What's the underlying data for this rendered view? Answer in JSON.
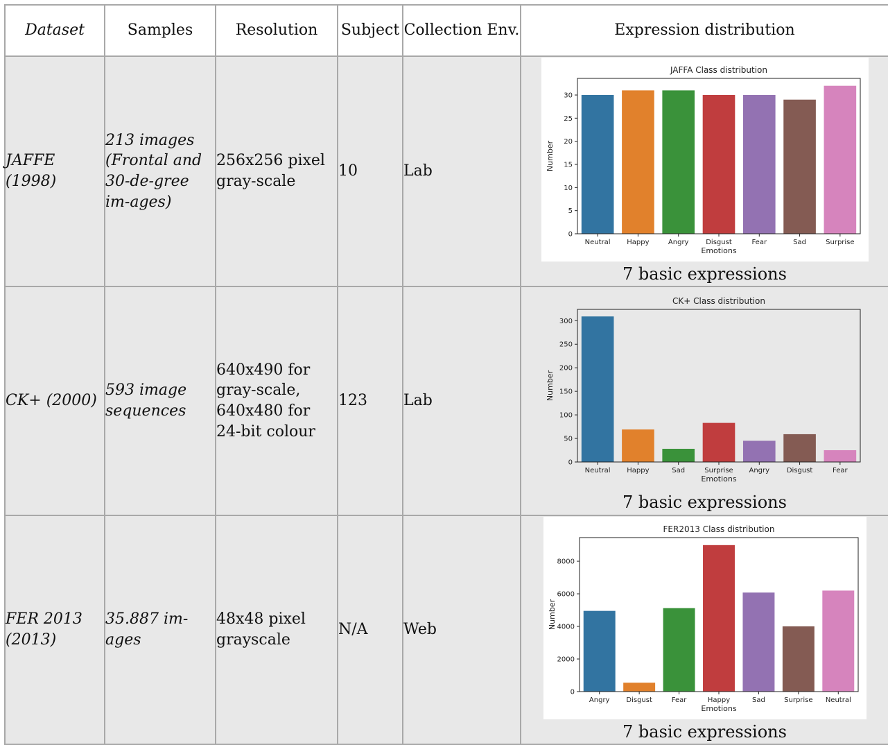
{
  "table": {
    "headers": [
      "Dataset",
      "Samples",
      "Resolution",
      "Subject",
      "Collection Env.",
      "Expression distribution"
    ],
    "rows": [
      {
        "dataset": "JAFFE (1998)",
        "samples": "213 images (Frontal and 30-de-gree im-ages)",
        "resolution": "256x256 pixel gray-scale",
        "subject": "10",
        "env": "Lab",
        "caption": "7 basic expressions"
      },
      {
        "dataset": "CK+ (2000)",
        "samples": "593 image sequences",
        "resolution": "640x490 for gray-scale, 640x480 for 24-bit colour",
        "subject": "123",
        "env": "Lab",
        "caption": "7 basic expressions"
      },
      {
        "dataset": "FER 2013 (2013)",
        "samples": "35.887 im-ages",
        "resolution": "48x48 pixel grayscale",
        "subject": "N/A",
        "env": "Web",
        "caption": "7 basic expressions"
      }
    ]
  },
  "chart_data": [
    {
      "type": "bar",
      "title": "JAFFA Class distribution",
      "xlabel": "Emotions",
      "ylabel": "Number",
      "categories": [
        "Neutral",
        "Happy",
        "Angry",
        "Disgust",
        "Fear",
        "Sad",
        "Surprise"
      ],
      "values": [
        30,
        31,
        31,
        30,
        30,
        29,
        32
      ],
      "ylim": [
        0,
        33.6
      ],
      "yticks": [
        0,
        5,
        10,
        15,
        20,
        25,
        30
      ],
      "colors": [
        "#3274a1",
        "#e1812c",
        "#3a923a",
        "#c03d3e",
        "#9372b2",
        "#845b53",
        "#d684bd"
      ]
    },
    {
      "type": "bar",
      "title": "CK+ Class distribution",
      "xlabel": "Emotions",
      "ylabel": "Number",
      "categories": [
        "Neutral",
        "Happy",
        "Sad",
        "Surprise",
        "Angry",
        "Disgust",
        "Fear"
      ],
      "values": [
        309,
        69,
        28,
        83,
        45,
        59,
        25
      ],
      "ylim": [
        0,
        324
      ],
      "yticks": [
        0,
        50,
        100,
        150,
        200,
        250,
        300
      ],
      "colors": [
        "#3274a1",
        "#e1812c",
        "#3a923a",
        "#c03d3e",
        "#9372b2",
        "#845b53",
        "#d684bd"
      ]
    },
    {
      "type": "bar",
      "title": "FER2013 Class distribution",
      "xlabel": "Emotions",
      "ylabel": "Number",
      "categories": [
        "Angry",
        "Disgust",
        "Fear",
        "Happy",
        "Sad",
        "Surprise",
        "Neutral"
      ],
      "values": [
        4953,
        547,
        5121,
        8989,
        6077,
        4002,
        6198
      ],
      "ylim": [
        0,
        9450
      ],
      "yticks": [
        0,
        2000,
        4000,
        6000,
        8000
      ],
      "colors": [
        "#3274a1",
        "#e1812c",
        "#3a923a",
        "#c03d3e",
        "#9372b2",
        "#845b53",
        "#d684bd"
      ]
    }
  ]
}
